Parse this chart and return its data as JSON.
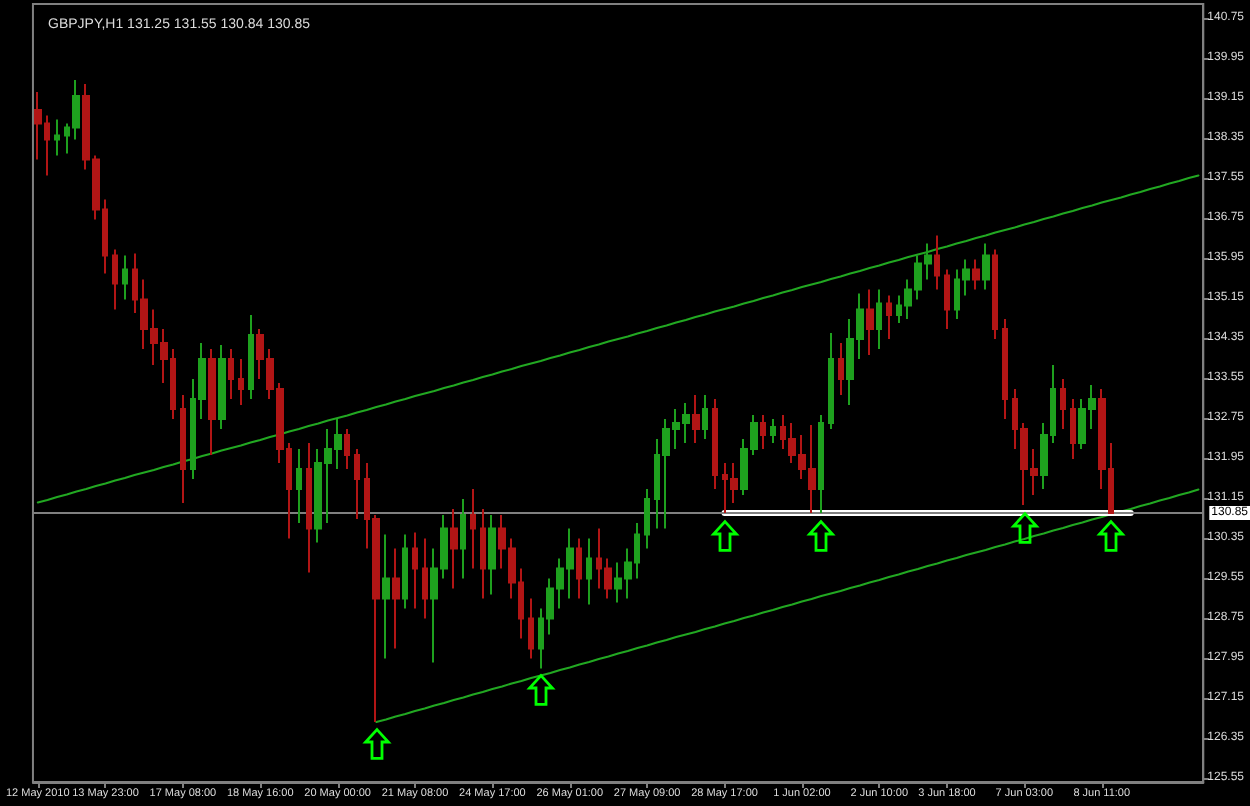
{
  "chart_data": {
    "type": "candlestick",
    "title": "GBPJPY,H1 131.25 131.55 130.84 130.85",
    "categories": [
      "12 May 2010",
      null,
      null,
      null,
      null,
      null,
      null,
      "13 May 23:00",
      null,
      null,
      null,
      null,
      null,
      null,
      null,
      "17 May 08:00",
      null,
      null,
      null,
      null,
      null,
      null,
      null,
      "18 May 16:00",
      null,
      null,
      null,
      null,
      null,
      null,
      null,
      "20 May 00:00",
      null,
      null,
      null,
      null,
      null,
      null,
      null,
      "21 May 08:00",
      null,
      null,
      null,
      null,
      null,
      null,
      null,
      "24 May 17:00",
      null,
      null,
      null,
      null,
      null,
      null,
      null,
      "26 May 01:00",
      null,
      null,
      null,
      null,
      null,
      null,
      null,
      "27 May 09:00",
      null,
      null,
      null,
      null,
      null,
      null,
      null,
      "28 May 17:00",
      null,
      null,
      null,
      null,
      null,
      null,
      null,
      "1 Jun 02:00",
      null,
      null,
      null,
      null,
      null,
      null,
      null,
      "2 Jun 10:00",
      null,
      null,
      null,
      null,
      null,
      null,
      "3 Jun 18:00",
      null,
      null,
      null,
      null,
      null,
      null,
      null,
      "7 Jun 03:00",
      null,
      null,
      null,
      null,
      null,
      null,
      null,
      "8 Jun 11:00",
      null,
      null,
      null,
      null,
      null,
      null,
      null,
      null,
      null,
      null
    ],
    "ohlc": [
      [
        138.91,
        139.27,
        137.92,
        138.64
      ],
      [
        138.64,
        138.8,
        137.6,
        138.32
      ],
      [
        138.32,
        138.72,
        138.0,
        138.4
      ],
      [
        138.4,
        138.64,
        138.04,
        138.56
      ],
      [
        138.56,
        139.51,
        138.32,
        139.19
      ],
      [
        139.19,
        139.43,
        137.72,
        137.92
      ],
      [
        137.92,
        138.0,
        136.72,
        136.92
      ],
      [
        136.92,
        137.12,
        135.64,
        136.0
      ],
      [
        136.0,
        136.12,
        134.92,
        135.44
      ],
      [
        135.44,
        136.0,
        135.12,
        135.72
      ],
      [
        135.72,
        136.04,
        134.85,
        135.12
      ],
      [
        135.12,
        135.52,
        134.13,
        134.53
      ],
      [
        134.53,
        134.92,
        133.81,
        134.25
      ],
      [
        134.25,
        134.53,
        133.45,
        133.93
      ],
      [
        133.93,
        134.13,
        132.73,
        132.93
      ],
      [
        132.93,
        133.21,
        131.05,
        131.73
      ],
      [
        131.73,
        133.53,
        131.53,
        133.13
      ],
      [
        133.13,
        134.25,
        132.73,
        133.93
      ],
      [
        133.93,
        134.13,
        132.01,
        132.73
      ],
      [
        132.73,
        134.21,
        132.53,
        133.93
      ],
      [
        133.93,
        134.13,
        133.13,
        133.53
      ],
      [
        133.53,
        133.93,
        133.01,
        133.33
      ],
      [
        133.33,
        134.81,
        133.13,
        134.41
      ],
      [
        134.41,
        134.53,
        133.53,
        133.93
      ],
      [
        133.93,
        134.13,
        133.13,
        133.33
      ],
      [
        133.33,
        133.45,
        131.85,
        132.13
      ],
      [
        132.13,
        132.25,
        130.34,
        131.33
      ],
      [
        131.33,
        132.13,
        130.65,
        131.73
      ],
      [
        131.73,
        132.25,
        129.66,
        130.54
      ],
      [
        130.54,
        132.13,
        130.26,
        131.85
      ],
      [
        131.85,
        132.53,
        130.65,
        132.13
      ],
      [
        132.13,
        132.73,
        131.73,
        132.41
      ],
      [
        132.41,
        132.53,
        131.73,
        132.01
      ],
      [
        132.01,
        132.13,
        130.73,
        131.53
      ],
      [
        131.53,
        131.85,
        130.14,
        130.73
      ],
      [
        130.73,
        130.81,
        126.67,
        129.14
      ],
      [
        129.14,
        130.42,
        127.94,
        129.54
      ],
      [
        129.54,
        130.14,
        128.14,
        129.14
      ],
      [
        129.14,
        130.42,
        128.94,
        130.14
      ],
      [
        130.14,
        130.46,
        128.94,
        129.74
      ],
      [
        129.74,
        130.34,
        128.74,
        129.14
      ],
      [
        129.14,
        130.14,
        127.86,
        129.74
      ],
      [
        129.74,
        130.81,
        129.54,
        130.54
      ],
      [
        130.54,
        130.93,
        129.34,
        130.14
      ],
      [
        130.14,
        131.13,
        129.54,
        130.81
      ],
      [
        130.81,
        131.33,
        129.74,
        130.54
      ],
      [
        130.54,
        130.93,
        129.14,
        129.74
      ],
      [
        129.74,
        130.81,
        129.22,
        130.54
      ],
      [
        130.54,
        130.81,
        129.74,
        130.14
      ],
      [
        130.14,
        130.34,
        129.14,
        129.46
      ],
      [
        129.46,
        129.74,
        128.34,
        128.74
      ],
      [
        128.74,
        129.14,
        127.94,
        128.14
      ],
      [
        128.14,
        128.94,
        127.74,
        128.74
      ],
      [
        128.74,
        129.54,
        128.42,
        129.34
      ],
      [
        129.34,
        129.94,
        128.94,
        129.74
      ],
      [
        129.74,
        130.54,
        129.14,
        130.14
      ],
      [
        130.14,
        130.34,
        129.14,
        129.54
      ],
      [
        129.54,
        130.34,
        129.02,
        129.94
      ],
      [
        129.94,
        130.54,
        129.34,
        129.74
      ],
      [
        129.74,
        129.94,
        129.14,
        129.34
      ],
      [
        129.34,
        129.86,
        129.06,
        129.54
      ],
      [
        129.54,
        130.14,
        129.14,
        129.86
      ],
      [
        129.86,
        130.65,
        129.54,
        130.42
      ],
      [
        130.42,
        131.33,
        130.14,
        131.13
      ],
      [
        131.13,
        132.33,
        130.54,
        132.01
      ],
      [
        132.01,
        132.73,
        130.54,
        132.53
      ],
      [
        132.53,
        132.93,
        132.13,
        132.65
      ],
      [
        132.65,
        133.05,
        132.25,
        132.81
      ],
      [
        132.81,
        133.21,
        132.25,
        132.53
      ],
      [
        132.53,
        133.21,
        132.33,
        132.93
      ],
      [
        132.93,
        133.13,
        131.33,
        131.61
      ],
      [
        131.61,
        131.85,
        130.85,
        131.53
      ],
      [
        131.53,
        131.85,
        131.05,
        131.33
      ],
      [
        131.33,
        132.33,
        131.21,
        132.13
      ],
      [
        132.13,
        132.81,
        132.01,
        132.65
      ],
      [
        132.65,
        132.81,
        132.13,
        132.41
      ],
      [
        132.41,
        132.73,
        132.25,
        132.57
      ],
      [
        132.57,
        132.81,
        132.13,
        132.33
      ],
      [
        132.33,
        132.65,
        131.85,
        132.01
      ],
      [
        132.01,
        132.41,
        131.53,
        131.73
      ],
      [
        131.73,
        132.61,
        130.85,
        131.33
      ],
      [
        131.33,
        132.81,
        130.85,
        132.65
      ],
      [
        132.65,
        134.45,
        132.53,
        133.93
      ],
      [
        133.93,
        134.25,
        133.21,
        133.53
      ],
      [
        133.53,
        134.73,
        133.01,
        134.33
      ],
      [
        134.33,
        135.24,
        133.93,
        134.92
      ],
      [
        134.92,
        135.32,
        134.01,
        134.53
      ],
      [
        134.53,
        135.32,
        134.13,
        135.04
      ],
      [
        135.04,
        135.2,
        134.33,
        134.81
      ],
      [
        134.81,
        135.2,
        134.65,
        135.0
      ],
      [
        135.0,
        135.52,
        134.73,
        135.32
      ],
      [
        135.32,
        136.0,
        135.12,
        135.84
      ],
      [
        135.84,
        136.24,
        135.52,
        136.0
      ],
      [
        136.0,
        136.4,
        135.32,
        135.6
      ],
      [
        135.6,
        135.72,
        134.53,
        134.92
      ],
      [
        134.92,
        135.72,
        134.73,
        135.52
      ],
      [
        135.52,
        135.92,
        135.2,
        135.72
      ],
      [
        135.72,
        135.92,
        135.32,
        135.52
      ],
      [
        135.52,
        136.24,
        135.32,
        136.0
      ],
      [
        136.0,
        136.12,
        134.33,
        134.53
      ],
      [
        134.53,
        134.73,
        132.73,
        133.13
      ],
      [
        133.13,
        133.33,
        132.13,
        132.53
      ],
      [
        132.53,
        132.65,
        131.01,
        131.73
      ],
      [
        131.73,
        132.13,
        131.21,
        131.61
      ],
      [
        131.61,
        132.65,
        131.33,
        132.41
      ],
      [
        132.41,
        133.81,
        132.25,
        133.33
      ],
      [
        133.33,
        133.53,
        132.53,
        132.93
      ],
      [
        132.93,
        133.13,
        131.93,
        132.25
      ],
      [
        132.25,
        133.13,
        132.13,
        132.93
      ],
      [
        132.93,
        133.41,
        132.53,
        133.13
      ],
      [
        133.13,
        133.33,
        131.33,
        131.73
      ],
      [
        131.73,
        132.25,
        130.84,
        130.85
      ],
      null,
      null,
      null,
      null,
      null,
      null,
      null,
      null,
      null
    ],
    "colors": [
      "#b21515",
      "#b21515",
      "#1ea01e",
      "#1ea01e",
      "#1ea01e",
      "#b21515",
      "#b21515",
      "#b21515",
      "#b21515",
      "#1ea01e",
      "#b21515",
      "#b21515",
      "#b21515",
      "#b21515",
      "#b21515",
      "#b21515",
      "#1ea01e",
      "#1ea01e",
      "#b21515",
      "#1ea01e",
      "#b21515",
      "#b21515",
      "#1ea01e",
      "#b21515",
      "#b21515",
      "#b21515",
      "#b21515",
      "#1ea01e",
      "#b21515",
      "#1ea01e",
      "#1ea01e",
      "#1ea01e",
      "#b21515",
      "#b21515",
      "#b21515",
      "#b21515",
      "#1ea01e",
      "#b21515",
      "#1ea01e",
      "#b21515",
      "#b21515",
      "#1ea01e",
      "#1ea01e",
      "#b21515",
      "#1ea01e",
      "#b21515",
      "#b21515",
      "#1ea01e",
      "#b21515",
      "#b21515",
      "#b21515",
      "#b21515",
      "#1ea01e",
      "#1ea01e",
      "#1ea01e",
      "#1ea01e",
      "#b21515",
      "#1ea01e",
      "#b21515",
      "#b21515",
      "#1ea01e",
      "#1ea01e",
      "#1ea01e",
      "#1ea01e",
      "#1ea01e",
      "#1ea01e",
      "#1ea01e",
      "#1ea01e",
      "#b21515",
      "#1ea01e",
      "#b21515",
      "#b21515",
      "#b21515",
      "#1ea01e",
      "#1ea01e",
      "#b21515",
      "#1ea01e",
      "#b21515",
      "#b21515",
      "#b21515",
      "#b21515",
      "#1ea01e",
      "#1ea01e",
      "#b21515",
      "#1ea01e",
      "#1ea01e",
      "#b21515",
      "#1ea01e",
      "#b21515",
      "#1ea01e",
      "#1ea01e",
      "#1ea01e",
      "#1ea01e",
      "#b21515",
      "#b21515",
      "#1ea01e",
      "#1ea01e",
      "#b21515",
      "#1ea01e",
      "#b21515",
      "#b21515",
      "#b21515",
      "#b21515",
      "#b21515",
      "#1ea01e",
      "#1ea01e",
      "#b21515",
      "#b21515",
      "#1ea01e",
      "#1ea01e",
      "#b21515",
      "#b21515",
      null,
      null,
      null,
      null,
      null,
      null,
      null,
      null,
      null
    ],
    "series": [
      {
        "type": "line",
        "color": "#22a822",
        "values": [
          131.06,
          131.11,
          131.17,
          131.22,
          131.28,
          131.33,
          131.39,
          131.44,
          131.5,
          131.55,
          131.61,
          131.66,
          131.71,
          131.77,
          131.82,
          131.88,
          131.93,
          131.99,
          132.04,
          132.1,
          132.15,
          132.2,
          132.26,
          132.31,
          132.37,
          132.42,
          132.48,
          132.53,
          132.59,
          132.64,
          132.7,
          132.75,
          132.8,
          132.86,
          132.91,
          132.97,
          133.02,
          133.08,
          133.13,
          133.19,
          133.24,
          133.29,
          133.35,
          133.4,
          133.46,
          133.51,
          133.57,
          133.62,
          133.68,
          133.73,
          133.79,
          133.84,
          133.89,
          133.95,
          134.0,
          134.06,
          134.11,
          134.17,
          134.22,
          134.28,
          134.33,
          134.38,
          134.44,
          134.49,
          134.55,
          134.6,
          134.66,
          134.71,
          134.77,
          134.82,
          134.88,
          134.93,
          134.98,
          135.04,
          135.09,
          135.15,
          135.2,
          135.26,
          135.31,
          135.37,
          135.42,
          135.47,
          135.53,
          135.58,
          135.64,
          135.69,
          135.75,
          135.8,
          135.86,
          135.91,
          135.97,
          136.02,
          136.07,
          136.13,
          136.18,
          136.24,
          136.29,
          136.35,
          136.4,
          136.46,
          136.51,
          136.56,
          136.62,
          136.67,
          136.73,
          136.78,
          136.84,
          136.89,
          136.95,
          137.0,
          137.06,
          137.11,
          137.16,
          137.22,
          137.27,
          137.33,
          137.38,
          137.44,
          137.49,
          137.55,
          137.6
        ]
      },
      {
        "type": "line",
        "color": "#22a822",
        "values": [
          null,
          null,
          null,
          null,
          null,
          null,
          null,
          null,
          null,
          null,
          null,
          null,
          null,
          null,
          null,
          null,
          null,
          null,
          null,
          null,
          null,
          null,
          null,
          null,
          null,
          null,
          null,
          null,
          null,
          null,
          null,
          null,
          null,
          null,
          null,
          126.67,
          126.72,
          126.78,
          126.83,
          126.89,
          126.94,
          127.0,
          127.05,
          127.11,
          127.16,
          127.22,
          127.27,
          127.33,
          127.38,
          127.44,
          127.49,
          127.55,
          127.6,
          127.65,
          127.71,
          127.76,
          127.82,
          127.87,
          127.93,
          127.98,
          128.04,
          128.09,
          128.15,
          128.2,
          128.26,
          128.31,
          128.37,
          128.42,
          128.47,
          128.53,
          128.58,
          128.64,
          128.69,
          128.75,
          128.8,
          128.86,
          128.91,
          128.97,
          129.02,
          129.08,
          129.13,
          129.19,
          129.24,
          129.29,
          129.35,
          129.4,
          129.46,
          129.51,
          129.57,
          129.62,
          129.68,
          129.73,
          129.79,
          129.84,
          129.9,
          129.95,
          130.01,
          130.06,
          130.11,
          130.17,
          130.22,
          130.28,
          130.33,
          130.39,
          130.44,
          130.5,
          130.55,
          130.61,
          130.66,
          130.72,
          130.77,
          130.83,
          130.88,
          130.93,
          130.99,
          131.04,
          131.1,
          131.15,
          131.21,
          131.26,
          131.32
        ]
      },
      {
        "type": "line",
        "color": "#ffffff",
        "values": [
          null,
          null,
          null,
          null,
          null,
          null,
          null,
          null,
          null,
          null,
          null,
          null,
          null,
          null,
          null,
          null,
          null,
          null,
          null,
          null,
          null,
          null,
          null,
          null,
          null,
          null,
          null,
          null,
          null,
          null,
          null,
          null,
          null,
          null,
          null,
          null,
          null,
          null,
          null,
          null,
          null,
          null,
          null,
          null,
          null,
          null,
          null,
          null,
          null,
          null,
          null,
          null,
          null,
          null,
          null,
          null,
          null,
          null,
          null,
          null,
          null,
          null,
          null,
          null,
          null,
          null,
          null,
          null,
          null,
          null,
          null,
          130.85,
          130.85,
          130.85,
          130.85,
          130.85,
          130.85,
          130.85,
          130.85,
          130.85,
          130.85,
          130.85,
          130.85,
          130.85,
          130.85,
          130.85,
          130.85,
          130.85,
          130.85,
          130.85,
          130.85,
          130.85,
          130.85,
          130.85,
          130.85,
          130.85,
          130.85,
          130.85,
          130.85,
          130.85,
          130.85,
          130.85,
          130.85,
          130.85,
          130.85,
          130.85,
          130.85,
          130.85,
          130.85,
          130.85,
          130.85,
          130.85,
          130.85,
          130.85,
          null,
          null,
          null,
          null,
          null,
          null,
          null
        ]
      }
    ],
    "ylim": [
      125.47,
      141.03
    ],
    "yticks": [
      125.55,
      126.35,
      127.15,
      127.95,
      128.75,
      129.55,
      130.35,
      131.15,
      131.95,
      132.75,
      133.55,
      134.35,
      135.15,
      135.95,
      136.75,
      137.55,
      138.35,
      139.15,
      139.95,
      140.75
    ],
    "ref_lines": [
      {
        "axis": "y",
        "value": 130.85,
        "label": "130.85",
        "color": "#808080"
      }
    ],
    "grid": false,
    "marker": "none"
  }
}
